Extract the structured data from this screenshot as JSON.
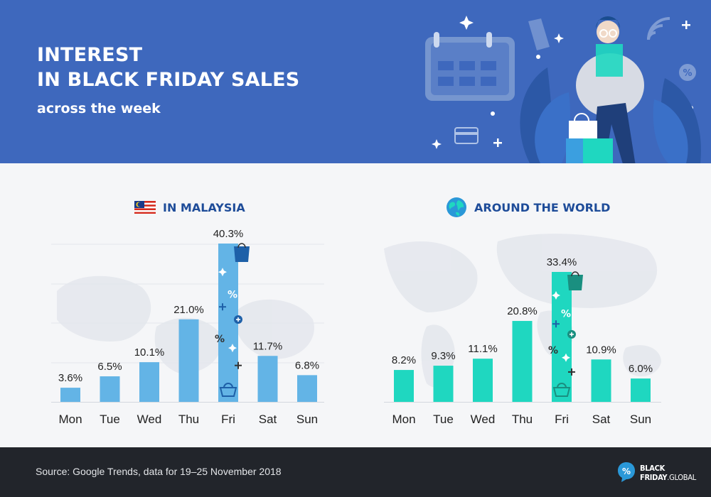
{
  "header": {
    "title_line1": "INTEREST",
    "title_line2": "IN BLACK FRIDAY SALES",
    "subtitle": "across the week"
  },
  "colors": {
    "header_bg": "#3e68bd",
    "malaysia_bar": "#63b4e6",
    "world_bar": "#1fd7c0",
    "footer_bg": "#22252b",
    "panel_title": "#1e4c99"
  },
  "icons": [
    "calendar-icon",
    "shopper-illustration",
    "credit-card-icon",
    "wifi-icon",
    "percent-icon",
    "malaysia-flag-icon",
    "globe-icon",
    "shopping-bag-icon",
    "basket-icon"
  ],
  "chart_data": [
    {
      "type": "bar",
      "title": "IN MALAYSIA",
      "categories": [
        "Mon",
        "Tue",
        "Wed",
        "Thu",
        "Fri",
        "Sat",
        "Sun"
      ],
      "values": [
        3.6,
        6.5,
        10.1,
        21.0,
        40.3,
        11.7,
        6.8
      ],
      "labels": [
        "3.6%",
        "6.5%",
        "10.1%",
        "21.0%",
        "40.3%",
        "11.7%",
        "6.8%"
      ],
      "ylim": [
        0,
        40.3
      ],
      "grid": true,
      "legend": "none"
    },
    {
      "type": "bar",
      "title": "AROUND THE WORLD",
      "categories": [
        "Mon",
        "Tue",
        "Wed",
        "Thu",
        "Fri",
        "Sat",
        "Sun"
      ],
      "values": [
        8.2,
        9.3,
        11.1,
        20.8,
        33.4,
        10.9,
        6.0
      ],
      "labels": [
        "8.2%",
        "9.3%",
        "11.1%",
        "20.8%",
        "33.4%",
        "10.9%",
        "6.0%"
      ],
      "ylim": [
        0,
        33.4
      ],
      "grid": false,
      "legend": "none"
    }
  ],
  "footer": {
    "source": "Source: Google Trends, data for 19–25 November 2018",
    "logo_line1": "BLACK",
    "logo_line2a": "FRIDAY",
    "logo_line2b": ".GLOBAL"
  }
}
